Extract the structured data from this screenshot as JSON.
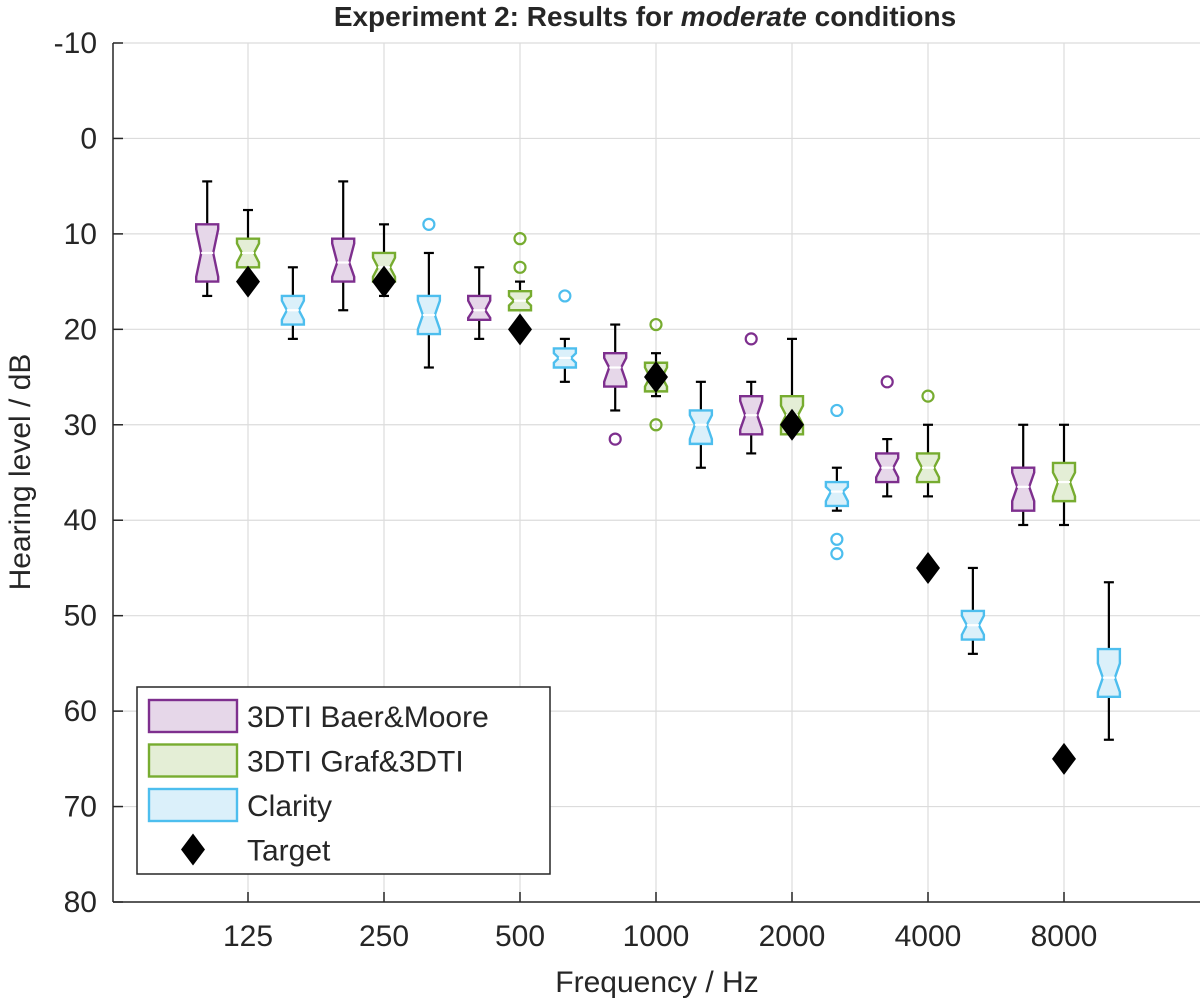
{
  "chart_data": {
    "type": "box",
    "title": {
      "prefix": "Experiment 2: Results for ",
      "emphasis": "moderate",
      "suffix": " conditions"
    },
    "xlabel": "Frequency / Hz",
    "ylabel": "Hearing level / dB",
    "categories": [
      "125",
      "250",
      "500",
      "1000",
      "2000",
      "4000",
      "8000"
    ],
    "ylim": [
      -10,
      80
    ],
    "y_reversed": true,
    "y_ticks": [
      -10,
      0,
      10,
      20,
      30,
      40,
      50,
      60,
      70,
      80
    ],
    "grid": true,
    "legend_position": "bottom-left",
    "series": [
      {
        "name": "3DTI Baer&Moore",
        "color": "#7e2f8e",
        "fill": "#e6d7e9",
        "offset": -0.3,
        "boxes": [
          {
            "whisker_low": 4.5,
            "q1": 9,
            "median": 12,
            "q3": 15,
            "whisker_high": 16.5,
            "notch": [
              9.5,
              14.5
            ],
            "outliers": []
          },
          {
            "whisker_low": 4.5,
            "q1": 10.5,
            "median": 13,
            "q3": 15,
            "whisker_high": 18,
            "notch": [
              11,
              14.5
            ],
            "outliers": []
          },
          {
            "whisker_low": 13.5,
            "q1": 16.5,
            "median": 18,
            "q3": 19,
            "whisker_high": 21,
            "notch": [
              17,
              18.8
            ],
            "outliers": []
          },
          {
            "whisker_low": 19.5,
            "q1": 22.5,
            "median": 24,
            "q3": 26,
            "whisker_high": 28.5,
            "notch": [
              23,
              25.5
            ],
            "outliers": [
              31.5
            ]
          },
          {
            "whisker_low": 25.5,
            "q1": 27,
            "median": 29,
            "q3": 31,
            "whisker_high": 33,
            "notch": [
              27.5,
              30.5
            ],
            "outliers": [
              21
            ]
          },
          {
            "whisker_low": 31.5,
            "q1": 33,
            "median": 34.5,
            "q3": 36,
            "whisker_high": 37.5,
            "notch": [
              33.5,
              35.5
            ],
            "outliers": [
              25.5
            ]
          },
          {
            "whisker_low": 30,
            "q1": 34.5,
            "median": 36.5,
            "q3": 39,
            "whisker_high": 40.5,
            "notch": [
              35,
              38
            ],
            "outliers": []
          }
        ]
      },
      {
        "name": "3DTI Graf&3DTI",
        "color": "#77ac30",
        "fill": "#e4eed6",
        "offset": 0.0,
        "boxes": [
          {
            "whisker_low": 7.5,
            "q1": 10.5,
            "median": 12,
            "q3": 13.5,
            "whisker_high": 14.5,
            "notch": [
              11,
              13
            ],
            "outliers": []
          },
          {
            "whisker_low": 9,
            "q1": 12,
            "median": 13.5,
            "q3": 15,
            "whisker_high": 16.5,
            "notch": [
              12.5,
              14.5
            ],
            "outliers": []
          },
          {
            "whisker_low": 15,
            "q1": 16,
            "median": 17,
            "q3": 18,
            "whisker_high": 18,
            "notch": [
              16.5,
              17.5
            ],
            "outliers": [
              10.5,
              13.5
            ]
          },
          {
            "whisker_low": 22.5,
            "q1": 23.5,
            "median": 25,
            "q3": 26.5,
            "whisker_high": 27,
            "notch": [
              24,
              26
            ],
            "outliers": [
              19.5,
              30
            ]
          },
          {
            "whisker_low": 21,
            "q1": 27,
            "median": 29,
            "q3": 31,
            "whisker_high": 31,
            "notch": [
              28,
              30
            ],
            "outliers": []
          },
          {
            "whisker_low": 30,
            "q1": 33,
            "median": 34.5,
            "q3": 36,
            "whisker_high": 37.5,
            "notch": [
              33.5,
              35.5
            ],
            "outliers": [
              27
            ]
          },
          {
            "whisker_low": 30,
            "q1": 34,
            "median": 36,
            "q3": 38,
            "whisker_high": 40.5,
            "notch": [
              35,
              37.5
            ],
            "outliers": []
          }
        ]
      },
      {
        "name": "Clarity",
        "color": "#4dbeee",
        "fill": "#dbf0fa",
        "offset": 0.33,
        "boxes": [
          {
            "whisker_low": 13.5,
            "q1": 16.5,
            "median": 18,
            "q3": 19.5,
            "whisker_high": 21,
            "notch": [
              17,
              19
            ],
            "outliers": []
          },
          {
            "whisker_low": 12,
            "q1": 16.5,
            "median": 18.5,
            "q3": 20.5,
            "whisker_high": 24,
            "notch": [
              17,
              20
            ],
            "outliers": [
              9
            ]
          },
          {
            "whisker_low": 21,
            "q1": 22,
            "median": 23,
            "q3": 24,
            "whisker_high": 25.5,
            "notch": [
              22.5,
              23.5
            ],
            "outliers": [
              16.5
            ]
          },
          {
            "whisker_low": 25.5,
            "q1": 28.5,
            "median": 30,
            "q3": 32,
            "whisker_high": 34.5,
            "notch": [
              29,
              31.5
            ],
            "outliers": []
          },
          {
            "whisker_low": 34.5,
            "q1": 36,
            "median": 37,
            "q3": 38.5,
            "whisker_high": 39,
            "notch": [
              36.5,
              38
            ],
            "outliers": [
              28.5,
              42,
              43.5
            ]
          },
          {
            "whisker_low": 45,
            "q1": 49.5,
            "median": 51,
            "q3": 52.5,
            "whisker_high": 54,
            "notch": [
              50,
              52
            ],
            "outliers": []
          },
          {
            "whisker_low": 46.5,
            "q1": 53.5,
            "median": 56.5,
            "q3": 58.5,
            "whisker_high": 63,
            "notch": [
              55,
              58
            ],
            "outliers": []
          }
        ]
      },
      {
        "name": "Target",
        "color": "#000000",
        "marker": "diamond",
        "values": [
          15,
          15,
          20,
          25,
          30,
          45,
          65
        ]
      }
    ]
  }
}
